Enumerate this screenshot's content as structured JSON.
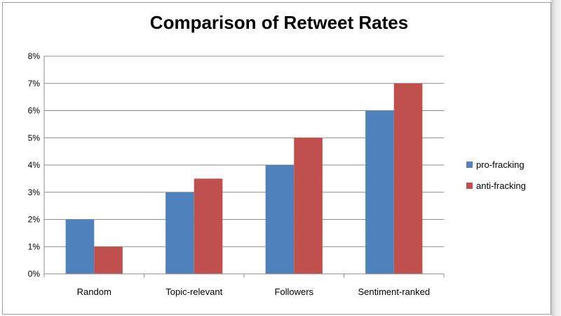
{
  "chart_data": {
    "type": "bar",
    "title": "Comparison of Retweet Rates",
    "categories": [
      "Random",
      "Topic-relevant",
      "Followers",
      "Sentiment-ranked"
    ],
    "series": [
      {
        "name": "pro-fracking",
        "values": [
          2,
          3,
          4,
          6
        ],
        "color": "#4F81BD"
      },
      {
        "name": "anti-fracking",
        "values": [
          1,
          3.5,
          5,
          7
        ],
        "color": "#C0504D"
      }
    ],
    "value_unit": "%",
    "ylim": [
      0,
      8
    ],
    "yticks": [
      "0%",
      "1%",
      "2%",
      "3%",
      "4%",
      "5%",
      "6%",
      "7%",
      "8%"
    ],
    "grid": true,
    "legend_position": "right"
  }
}
